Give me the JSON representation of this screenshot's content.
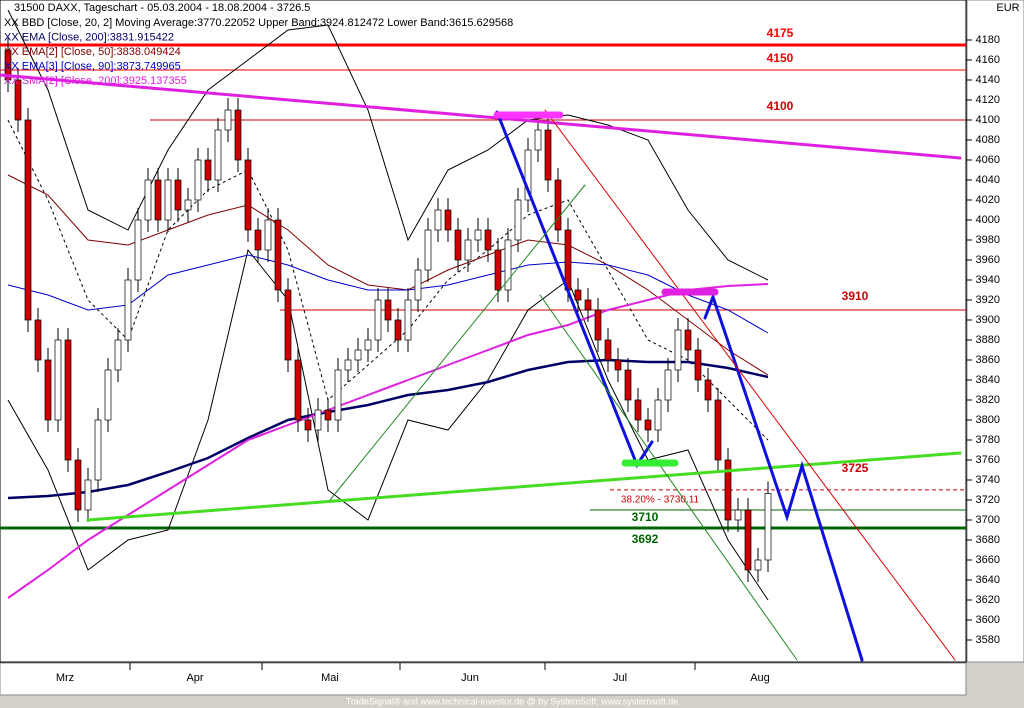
{
  "chart_data": {
    "type": "candlestick",
    "title": "31500 DAXX, Tageschart - 05.03.2004 - 18.08.2004 - 3726.5",
    "currency": "EUR",
    "footer": "TradeSignal® and www.technical-investor.de @ by SystemSoft, www.systemsoft.de",
    "months": [
      "Mrz",
      "Apr",
      "Mai",
      "Jun",
      "Jul",
      "Aug"
    ],
    "xlim": [
      -0.8,
      95.8
    ],
    "ylim": [
      3558,
      4220
    ],
    "yticks": [
      3580,
      3600,
      3620,
      3640,
      3660,
      3680,
      3700,
      3720,
      3740,
      3760,
      3780,
      3800,
      3820,
      3840,
      3860,
      3880,
      3900,
      3920,
      3940,
      3960,
      3980,
      4000,
      4020,
      4040,
      4060,
      4080,
      4100,
      4120,
      4140,
      4160,
      4180
    ],
    "up_color": "#ffffff",
    "down_color": "#cc0000",
    "open": [
      4170,
      4140,
      4100,
      3900,
      3860,
      3800,
      3880,
      3760,
      3710,
      3740,
      3800,
      3850,
      3880,
      3940,
      4000,
      4040,
      4000,
      4040,
      4010,
      4020,
      4060,
      4040,
      4090,
      4110,
      4060,
      3990,
      3970,
      4000,
      3930,
      3860,
      3800,
      3790,
      3810,
      3800,
      3850,
      3860,
      3870,
      3880,
      3920,
      3900,
      3880,
      3920,
      3950,
      3990,
      4010,
      3990,
      3960,
      3980,
      3990,
      3970,
      3930,
      3980,
      4020,
      4070,
      4090,
      4040,
      3990,
      3930,
      3920,
      3910,
      3880,
      3860,
      3850,
      3820,
      3800,
      3790,
      3820,
      3850,
      3890,
      3870,
      3840,
      3820,
      3760,
      3700,
      3710,
      3650,
      3660
    ],
    "high": [
      4182,
      4152,
      4112,
      3912,
      3872,
      3892,
      3892,
      3772,
      3752,
      3812,
      3862,
      3892,
      3952,
      4012,
      4052,
      4052,
      4052,
      4052,
      4032,
      4072,
      4072,
      4102,
      4122,
      4122,
      4072,
      4002,
      4012,
      4012,
      3942,
      3872,
      3812,
      3822,
      3822,
      3862,
      3872,
      3882,
      3892,
      3932,
      3932,
      3912,
      3932,
      3962,
      4002,
      4022,
      4022,
      4002,
      3992,
      4002,
      4002,
      3982,
      3992,
      4032,
      4082,
      4102,
      4102,
      4052,
      4002,
      3942,
      3932,
      3922,
      3892,
      3872,
      3862,
      3832,
      3812,
      3832,
      3862,
      3902,
      3902,
      3882,
      3852,
      3832,
      3772,
      3722,
      3722,
      3672,
      3738.5
    ],
    "low": [
      4128,
      4088,
      3888,
      3848,
      3788,
      3788,
      3748,
      3698,
      3698,
      3728,
      3788,
      3838,
      3868,
      3928,
      3988,
      3988,
      3988,
      3998,
      3998,
      4008,
      4028,
      4028,
      4078,
      4048,
      3978,
      3958,
      3958,
      3918,
      3848,
      3788,
      3778,
      3778,
      3788,
      3788,
      3838,
      3848,
      3858,
      3868,
      3888,
      3868,
      3868,
      3908,
      3938,
      3978,
      3978,
      3948,
      3948,
      3968,
      3958,
      3918,
      3918,
      3968,
      4008,
      4058,
      4028,
      3978,
      3918,
      3908,
      3898,
      3868,
      3848,
      3838,
      3808,
      3788,
      3778,
      3778,
      3808,
      3838,
      3858,
      3828,
      3808,
      3748,
      3688,
      3688,
      3638,
      3638,
      3648
    ],
    "close": [
      4140,
      4100,
      3900,
      3860,
      3800,
      3880,
      3760,
      3710,
      3740,
      3800,
      3850,
      3880,
      3940,
      4000,
      4040,
      4000,
      4040,
      4010,
      4020,
      4060,
      4040,
      4090,
      4110,
      4060,
      3990,
      3970,
      4000,
      3930,
      3860,
      3800,
      3790,
      3810,
      3800,
      3850,
      3860,
      3870,
      3880,
      3920,
      3900,
      3880,
      3920,
      3950,
      3990,
      4010,
      3990,
      3960,
      3980,
      3990,
      3970,
      3930,
      3980,
      4020,
      4070,
      4090,
      4040,
      3990,
      3930,
      3920,
      3910,
      3880,
      3860,
      3850,
      3820,
      3800,
      3790,
      3820,
      3850,
      3890,
      3870,
      3840,
      3820,
      3760,
      3700,
      3710,
      3650,
      3660,
      3726.5
    ],
    "indicator_x": [
      0,
      4,
      8,
      12,
      16,
      20,
      24,
      28,
      32,
      36,
      40,
      44,
      48,
      52,
      56,
      60,
      64,
      68,
      72,
      76
    ],
    "indicators": [
      {
        "name": "XX BBD [Close, 20, 2] Moving Average:3770.22052 Upper Band:3924.812472 Lower Band:3615.629568",
        "color": "#000000",
        "width": 1,
        "dash": true,
        "values": [
          4100,
          4020,
          3920,
          3880,
          3990,
          4030,
          4050,
          3970,
          3820,
          3855,
          3890,
          3940,
          3970,
          4005,
          4020,
          3950,
          3880,
          3860,
          3820,
          3780
        ],
        "upper": [
          4210,
          4130,
          4010,
          3990,
          4070,
          4130,
          4160,
          4190,
          4195,
          4110,
          3980,
          4050,
          4070,
          4100,
          4105,
          4095,
          4080,
          4010,
          3960,
          3940
        ],
        "lower": [
          3820,
          3750,
          3650,
          3680,
          3690,
          3800,
          3970,
          3920,
          3730,
          3700,
          3800,
          3790,
          3840,
          3910,
          3940,
          3840,
          3760,
          3770,
          3680,
          3620
        ]
      },
      {
        "name": "XX EMA [Close, 200]:3831.915422",
        "color": "#000066",
        "width": 2.5,
        "values": [
          3722,
          3724,
          3728,
          3735,
          3748,
          3762,
          3782,
          3800,
          3808,
          3815,
          3825,
          3830,
          3838,
          3850,
          3858,
          3860,
          3858,
          3858,
          3852,
          3843
        ]
      },
      {
        "name": "XX EMA[2] [Close, 50]:3838.049424",
        "color": "#800000",
        "width": 1,
        "values": [
          4045,
          4025,
          3980,
          3975,
          3990,
          4005,
          4015,
          3990,
          3955,
          3935,
          3930,
          3950,
          3965,
          3980,
          3975,
          3955,
          3930,
          3900,
          3870,
          3845
        ]
      },
      {
        "name": "XX EMA[3] [Close, 90]:3873.749965",
        "color": "#0000cc",
        "width": 1,
        "values": [
          3935,
          3925,
          3910,
          3915,
          3945,
          3955,
          3965,
          3955,
          3940,
          3930,
          3930,
          3935,
          3945,
          3955,
          3958,
          3955,
          3945,
          3925,
          3910,
          3887
        ]
      },
      {
        "name": "XX SMA[2] [Close, 200]:3925.137355",
        "color": "#e020e0",
        "width": 2,
        "values": [
          3622,
          3650,
          3680,
          3705,
          3730,
          3755,
          3780,
          3795,
          3810,
          3825,
          3840,
          3855,
          3870,
          3885,
          3895,
          3910,
          3920,
          3930,
          3934,
          3936
        ]
      }
    ],
    "levels": [
      {
        "value": 4175,
        "color": "#ff0000",
        "width": 3
      },
      {
        "value": 4150,
        "color": "#ee0000",
        "width": 1
      },
      {
        "value": 4100,
        "color": "#cc0000",
        "width": 1
      },
      {
        "value": 3910,
        "color": "#cc0000",
        "width": 1
      },
      {
        "value": 3725,
        "color": "#cc0000",
        "width": 0
      },
      {
        "value": 3730.11,
        "label": "38.20% - 3730.11",
        "color": "#cc0000",
        "width": 1,
        "dash": true
      },
      {
        "value": 3710,
        "color": "#006400",
        "width": 1
      },
      {
        "value": 3692,
        "color": "#006400",
        "width": 3
      }
    ],
    "trendlines": [
      {
        "color": "#e020e0",
        "width": 3,
        "points": [
          [
            -0.8,
            4145
          ],
          [
            95.2,
            4062
          ]
        ]
      },
      {
        "color": "#44dd22",
        "width": 3,
        "points": [
          [
            8,
            3700
          ],
          [
            95.2,
            3767
          ]
        ]
      },
      {
        "color": "#1010dd",
        "width": 3,
        "points": [
          [
            48.9,
            4108
          ],
          [
            62.9,
            3755
          ],
          [
            64.4,
            3778
          ]
        ]
      },
      {
        "color": "#1010dd",
        "width": 3,
        "points": [
          [
            69.7,
            3902
          ],
          [
            70.5,
            3923
          ],
          [
            77.9,
            3703
          ],
          [
            79.4,
            3754
          ],
          [
            85.4,
            3560
          ]
        ]
      },
      {
        "color": "#dd0000",
        "width": 1,
        "points": [
          [
            53.7,
            4110
          ],
          [
            94.7,
            3560
          ]
        ]
      },
      {
        "color": "#228822",
        "width": 1,
        "points": [
          [
            32.2,
            3720
          ],
          [
            57.7,
            4035
          ]
        ]
      },
      {
        "color": "#228822",
        "width": 1,
        "points": [
          [
            53.2,
            3925
          ],
          [
            78.9,
            3560
          ]
        ]
      },
      {
        "color": "#ff33ff",
        "width": 7,
        "points": [
          [
            48.9,
            4105
          ],
          [
            55.2,
            4105
          ]
        ]
      },
      {
        "color": "#e020e0",
        "width": 7,
        "points": [
          [
            65.7,
            3928
          ],
          [
            70.7,
            3928
          ]
        ]
      },
      {
        "color": "#33ee33",
        "width": 7,
        "points": [
          [
            61.7,
            3757
          ],
          [
            66.7,
            3757
          ]
        ]
      }
    ]
  }
}
